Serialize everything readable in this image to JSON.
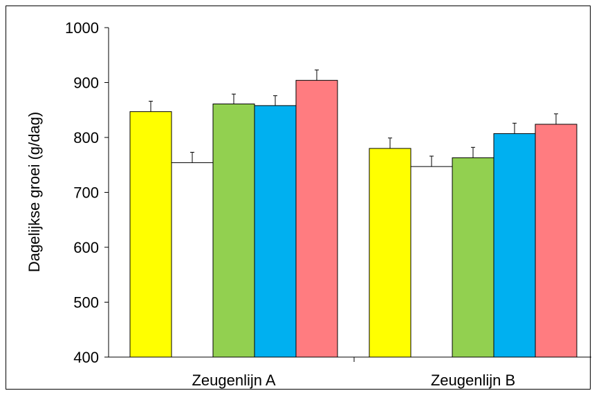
{
  "chart_data": {
    "type": "bar",
    "categories": [
      "Zeugenlijn A",
      "Zeugenlijn B"
    ],
    "series": [
      {
        "values": [
          847,
          780
        ],
        "errors": [
          19,
          19
        ],
        "color": "#FFFF00"
      },
      {
        "values": [
          754,
          747
        ],
        "errors": [
          19,
          19
        ],
        "color": "#FFFFFF"
      },
      {
        "values": [
          861,
          763
        ],
        "errors": [
          18,
          19
        ],
        "color": "#92D050"
      },
      {
        "values": [
          858,
          807
        ],
        "errors": [
          18,
          19
        ],
        "color": "#00B0F0"
      },
      {
        "values": [
          904,
          824
        ],
        "errors": [
          19,
          19
        ],
        "color": "#FF7C80"
      }
    ],
    "ylabel": "Dagelijkse groei (g/dag)",
    "ylim": [
      400,
      1000
    ],
    "yticks": [
      "400",
      "500",
      "600",
      "700",
      "800",
      "900",
      "1000"
    ],
    "grid": false
  }
}
